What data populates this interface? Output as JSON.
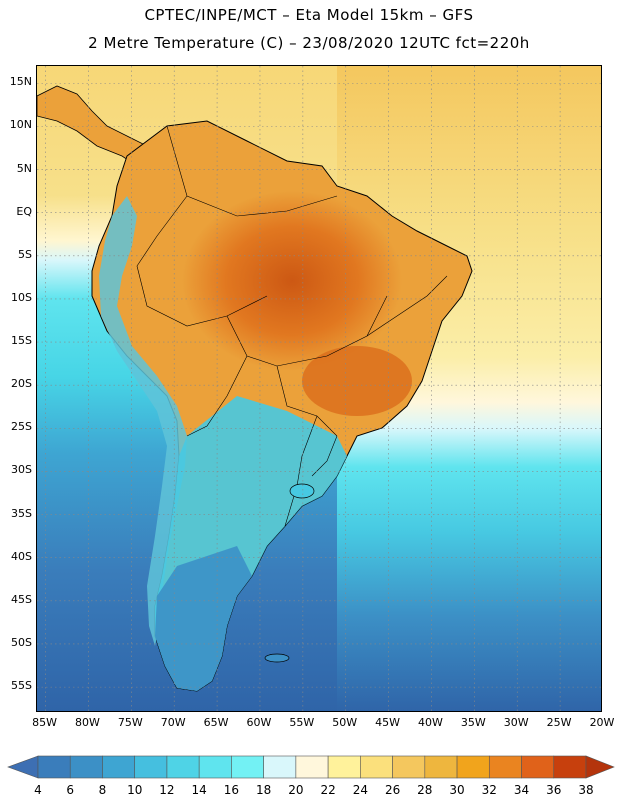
{
  "header": {
    "line1": "CPTEC/INPE/MCT –  Eta Model 15km – GFS",
    "line2": "2 Metre Temperature (C) – 23/08/2020 12UTC fct=220h"
  },
  "map": {
    "region": "South America",
    "lat_labels": [
      "15N",
      "10N",
      "5N",
      "EQ",
      "5S",
      "10S",
      "15S",
      "20S",
      "25S",
      "30S",
      "35S",
      "40S",
      "45S",
      "50S",
      "55S"
    ],
    "lon_labels": [
      "85W",
      "80W",
      "75W",
      "70W",
      "65W",
      "60W",
      "55W",
      "50W",
      "45W",
      "40W",
      "35W",
      "30W",
      "25W",
      "20W"
    ],
    "lon_range": [
      -86,
      -20
    ],
    "lat_range": [
      17,
      -58
    ],
    "colors": {
      "ocean_south": "#2f6fb0",
      "ocean_mid": "#3aa7cf",
      "ocean_cyan": "#47d5e6",
      "ocean_tropical_warm": "#f7e08a",
      "land_hot": "#d96a1a",
      "land_warm": "#eba13a",
      "coast": "#000000",
      "grid": "#888888"
    }
  },
  "colorbar": {
    "labels": [
      "4",
      "6",
      "8",
      "10",
      "12",
      "14",
      "16",
      "18",
      "20",
      "22",
      "24",
      "26",
      "28",
      "30",
      "32",
      "34",
      "36",
      "38"
    ],
    "colors": [
      "#3d6fb3",
      "#3a7dbb",
      "#3c90c6",
      "#3ea5d2",
      "#45bfdf",
      "#4fd3e6",
      "#5fe4ee",
      "#73f1f4",
      "#d9f7fb",
      "#fff7dc",
      "#fff29b",
      "#fbe07c",
      "#f4c75e",
      "#eeb63e",
      "#f1a41c",
      "#ea8420",
      "#e0621a",
      "#c7400d",
      "#b4340c"
    ]
  }
}
